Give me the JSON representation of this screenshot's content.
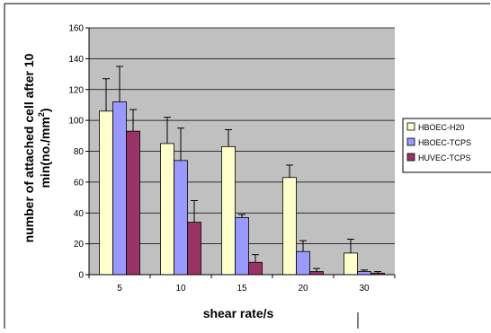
{
  "chart_data": {
    "type": "bar",
    "xlabel": "shear rate/s",
    "ylabel_line1": "number of attached cell after 10",
    "ylabel_line2_main": "min(no./mm",
    "ylabel_line2_sup": "2",
    "ylabel_line2_end": ")",
    "ylim": [
      0,
      160
    ],
    "yticks": [
      "0",
      "20",
      "40",
      "60",
      "80",
      "100",
      "120",
      "140",
      "160"
    ],
    "categories": [
      "5",
      "10",
      "15",
      "20",
      "30"
    ],
    "grid": true,
    "legend_position": "right",
    "series": [
      {
        "name": "HBOEC-H20",
        "color": "#ffffcc",
        "values": [
          106,
          85,
          83,
          63,
          14
        ],
        "errors": [
          21,
          17,
          11,
          8,
          9
        ]
      },
      {
        "name": "HBOEC-TCPS",
        "color": "#9999ff",
        "values": [
          112,
          74,
          37,
          15,
          2
        ],
        "errors": [
          23,
          21,
          2,
          7,
          1
        ]
      },
      {
        "name": "HUVEC-TCPS",
        "color": "#993366",
        "values": [
          93,
          34,
          8,
          2,
          1
        ],
        "errors": [
          14,
          14,
          5,
          2,
          1
        ]
      }
    ]
  },
  "colors": {
    "plot_background": "#c0c0c0",
    "gridline": "#000000",
    "bar_stroke": "#000000"
  }
}
